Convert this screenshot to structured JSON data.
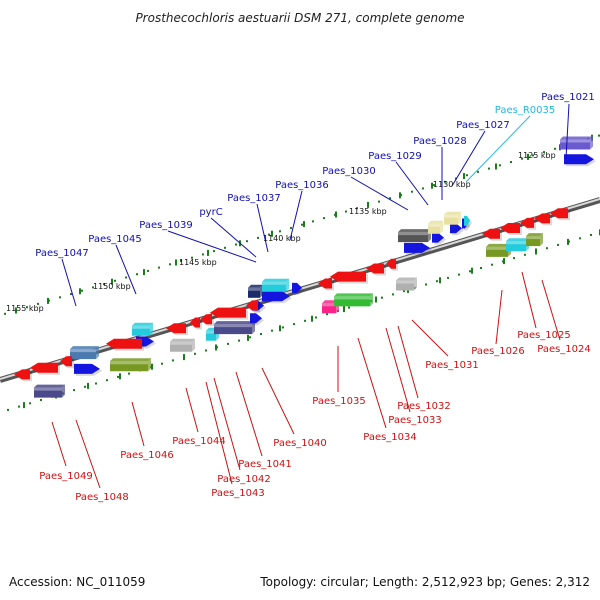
{
  "title": "Prosthecochloris aestuarii DSM 271, complete genome",
  "footer": {
    "accession": "Accession: NC_011059",
    "summary": "Topology: circular; Length: 2,512,923 bp; Genes: 2,312"
  },
  "colors": {
    "backbone": "#8a8a8a",
    "tick": "#1f7a1f",
    "label_forward": "#1010b0",
    "label_rna": "#22b8e0",
    "label_reverse": "#cc1111",
    "red": "#ee1111",
    "blue": "#1515e0",
    "cyan": "#22ccdd",
    "olive": "#779922",
    "slate": "#4a4a8a",
    "steel": "#4a7ab0",
    "purple": "#6a5acd",
    "gray": "#b0b0b0",
    "dark": "#555555",
    "khaki": "#e8e0a0",
    "green": "#33bb33",
    "magenta": "#ff2288",
    "navy": "#1a2a6a"
  },
  "ticks": [
    "1125 kbp",
    "1130 kbp",
    "1135 kbp",
    "1140 kbp",
    "1145 kbp",
    "1150 kbp",
    "1155 kbp"
  ],
  "top_labels": [
    "Paes_1021",
    "Paes_R0035",
    "Paes_1027",
    "Paes_1028",
    "Paes_1029",
    "Paes_1030",
    "Paes_1036",
    "Paes_1037",
    "pyrC",
    "Paes_1039",
    "Paes_1045",
    "Paes_1047"
  ],
  "bottom_labels": [
    "Paes_1024",
    "Paes_1025",
    "Paes_1026",
    "Paes_1031",
    "Paes_1032",
    "Paes_1033",
    "Paes_1034",
    "Paes_1035",
    "Paes_1040",
    "Paes_1041",
    "Paes_1042",
    "Paes_1043",
    "Paes_1044",
    "Paes_1046",
    "Paes_1048",
    "Paes_1049"
  ]
}
